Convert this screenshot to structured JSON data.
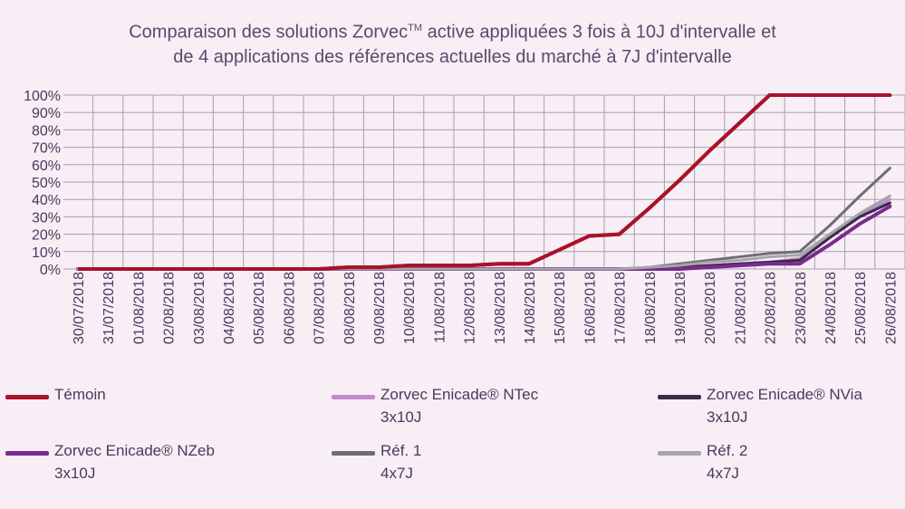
{
  "title": {
    "line1_a": "Comparaison des solutions Zorvec",
    "line1_tm": "TM",
    "line1_b": " active appliquées 3 fois à 10J d'intervalle et",
    "line2": "de 4 applications des références actuelles du marché à 7J d'intervalle"
  },
  "colors": {
    "background": "#f7eef6",
    "grid": "#a8a0aa",
    "text": "#4a3a5a"
  },
  "legend": [
    {
      "label": "Témoin",
      "sub": ""
    },
    {
      "label": "Zorvec Enicade® NTec",
      "sub": "3x10J"
    },
    {
      "label": "Zorvec Enicade® NVia",
      "sub": "3x10J"
    },
    {
      "label": "Zorvec Enicade® NZeb",
      "sub": "3x10J"
    },
    {
      "label": "Réf. 1",
      "sub": "4x7J"
    },
    {
      "label": "Réf. 2",
      "sub": "4x7J"
    }
  ],
  "chart_data": {
    "type": "line",
    "title": "Comparaison des solutions ZorvecTM active appliquées 3 fois à 10J d'intervalle et de 4 applications des références actuelles du marché à 7J d'intervalle",
    "xlabel": "",
    "ylabel": "",
    "ylim": [
      0,
      100
    ],
    "yticks": [
      "0%",
      "10%",
      "20%",
      "30%",
      "40%",
      "50%",
      "60%",
      "70%",
      "80%",
      "90%",
      "100%"
    ],
    "grid": true,
    "legend_position": "bottom",
    "categories": [
      "30/07/2018",
      "31/07/2018",
      "01/08/2018",
      "02/08/2018",
      "03/08/2018",
      "04/08/2018",
      "05/08/2018",
      "06/08/2018",
      "07/08/2018",
      "08/08/2018",
      "09/08/2018",
      "10/08/2018",
      "11/08/2018",
      "12/08/2018",
      "13/08/2018",
      "14/08/2018",
      "15/08/2018",
      "16/08/2018",
      "17/08/2018",
      "18/08/2018",
      "19/08/2018",
      "20/08/2018",
      "21/08/2018",
      "22/08/2018",
      "23/08/2018",
      "24/08/2018",
      "25/08/2018",
      "26/08/2018"
    ],
    "series": [
      {
        "name": "Témoin",
        "color": "#a8122a",
        "width": 4,
        "values": [
          0,
          0,
          0,
          0,
          0,
          0,
          0,
          0,
          0,
          1,
          1,
          2,
          2,
          2,
          3,
          3,
          11,
          19,
          20,
          35,
          51,
          68,
          84,
          100,
          100,
          100,
          100,
          100
        ]
      },
      {
        "name": "Zorvec Enicade® NTec",
        "color": "#c08ac8",
        "width": 3,
        "values": [
          0,
          0,
          0,
          0,
          0,
          0,
          0,
          0,
          0,
          0,
          0,
          0,
          0,
          0,
          0,
          0,
          0,
          0,
          0,
          0,
          1,
          2,
          3,
          4,
          6,
          20,
          31,
          40
        ]
      },
      {
        "name": "Zorvec Enicade® NVia",
        "color": "#3a2a4a",
        "width": 3,
        "values": [
          0,
          0,
          0,
          0,
          0,
          0,
          0,
          0,
          0,
          0,
          0,
          0,
          0,
          0,
          0,
          0,
          0,
          0,
          0,
          0,
          1,
          2,
          3,
          4,
          5,
          18,
          30,
          38
        ]
      },
      {
        "name": "Zorvec Enicade® NZeb",
        "color": "#7a2a90",
        "width": 4,
        "values": [
          0,
          0,
          0,
          0,
          0,
          0,
          0,
          0,
          0,
          0,
          0,
          0,
          0,
          0,
          0,
          0,
          0,
          0,
          0,
          0,
          0,
          1,
          2,
          3,
          3,
          14,
          26,
          36
        ]
      },
      {
        "name": "Réf. 1",
        "color": "#6e6e74",
        "width": 3,
        "values": [
          0,
          0,
          0,
          0,
          0,
          0,
          0,
          0,
          0,
          0,
          0,
          0,
          0,
          0,
          0,
          0,
          0,
          0,
          0,
          1,
          3,
          5,
          7,
          9,
          10,
          25,
          42,
          58
        ]
      },
      {
        "name": "Réf. 2",
        "color": "#a5a5aa",
        "width": 3,
        "values": [
          0,
          0,
          0,
          0,
          0,
          0,
          0,
          0,
          0,
          0,
          0,
          0,
          0,
          0,
          0,
          0,
          0,
          0,
          0,
          1,
          2,
          4,
          5,
          7,
          8,
          20,
          32,
          42
        ]
      }
    ]
  }
}
